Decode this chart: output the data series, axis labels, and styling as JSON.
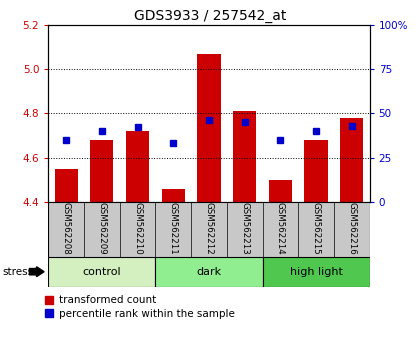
{
  "title": "GDS3933 / 257542_at",
  "samples": [
    "GSM562208",
    "GSM562209",
    "GSM562210",
    "GSM562211",
    "GSM562212",
    "GSM562213",
    "GSM562214",
    "GSM562215",
    "GSM562216"
  ],
  "red_values": [
    4.55,
    4.68,
    4.72,
    4.46,
    5.07,
    4.81,
    4.5,
    4.68,
    4.78
  ],
  "blue_values": [
    35,
    40,
    42,
    33,
    46,
    45,
    35,
    40,
    43
  ],
  "ylim_left": [
    4.4,
    5.2
  ],
  "ylim_right": [
    0,
    100
  ],
  "yticks_left": [
    4.4,
    4.6,
    4.8,
    5.0,
    5.2
  ],
  "yticks_right": [
    0,
    25,
    50,
    75,
    100
  ],
  "groups": [
    {
      "label": "control",
      "samples": [
        0,
        1,
        2
      ],
      "color": "#d4f0c0"
    },
    {
      "label": "dark",
      "samples": [
        3,
        4,
        5
      ],
      "color": "#90ee90"
    },
    {
      "label": "high light",
      "samples": [
        6,
        7,
        8
      ],
      "color": "#50c850"
    }
  ],
  "stress_label": "stress",
  "bar_color_red": "#cc0000",
  "bar_color_blue": "#0000cc",
  "bar_bottom": 4.4,
  "bar_width": 0.65,
  "sample_area_color": "#c8c8c8",
  "legend_red": "transformed count",
  "legend_blue": "percentile rank within the sample"
}
